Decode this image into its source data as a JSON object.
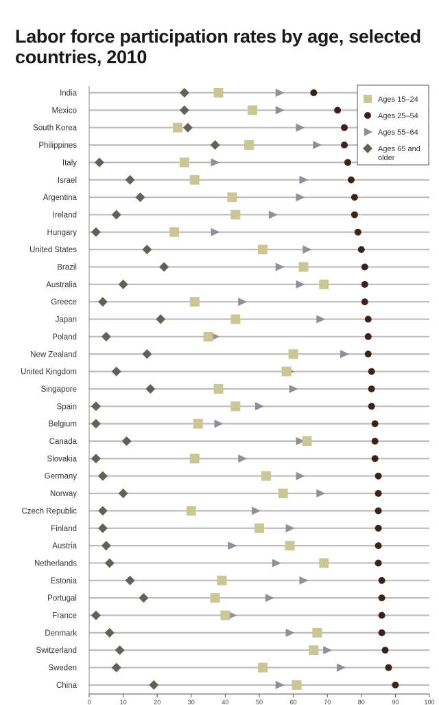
{
  "chart_data": {
    "type": "scatter",
    "title": "Labor force participation rates by age, selected countries, 2010",
    "xlim": [
      0,
      100
    ],
    "xticks": [
      "0",
      "10",
      "20",
      "30",
      "40",
      "50",
      "60",
      "70",
      "80",
      "90",
      "100"
    ],
    "grid": true,
    "legend_position": "top-right",
    "categories": [
      "India",
      "Mexico",
      "South Korea",
      "Philippines",
      "Italy",
      "Israel",
      "Argentina",
      "Ireland",
      "Hungary",
      "United States",
      "Brazil",
      "Australia",
      "Greece",
      "Japan",
      "Poland",
      "New Zealand",
      "United Kingdom",
      "Singapore",
      "Spain",
      "Belgium",
      "Canada",
      "Slovakia",
      "Germany",
      "Norway",
      "Czech Republic",
      "Finland",
      "Austria",
      "Netherlands",
      "Estonia",
      "Portugal",
      "France",
      "Denmark",
      "Switzerland",
      "Sweden",
      "China"
    ],
    "series": [
      {
        "name": "Ages 15–24",
        "marker": "square",
        "color": "#cbc795",
        "values": [
          38,
          48,
          26,
          47,
          28,
          31,
          42,
          43,
          25,
          51,
          63,
          69,
          31,
          43,
          35,
          60,
          58,
          38,
          43,
          32,
          64,
          31,
          52,
          57,
          30,
          50,
          59,
          69,
          39,
          37,
          40,
          67,
          66,
          51,
          61
        ]
      },
      {
        "name": "Ages 25–54",
        "marker": "circle",
        "color": "#3b2318",
        "values": [
          66,
          73,
          75,
          75,
          76,
          77,
          78,
          78,
          79,
          80,
          81,
          81,
          81,
          82,
          82,
          82,
          83,
          83,
          83,
          84,
          84,
          84,
          85,
          85,
          85,
          85,
          85,
          85,
          86,
          86,
          86,
          86,
          87,
          88,
          90
        ]
      },
      {
        "name": "Ages 55–64",
        "marker": "triangle",
        "color": "#8f8f99",
        "values": [
          56,
          56,
          62,
          67,
          37,
          63,
          62,
          54,
          37,
          64,
          56,
          62,
          45,
          68,
          37,
          75,
          59,
          60,
          50,
          38,
          62,
          45,
          62,
          68,
          49,
          59,
          42,
          55,
          63,
          53,
          42,
          59,
          70,
          74,
          56
        ]
      },
      {
        "name": "Ages 65 and older",
        "marker": "diamond",
        "color": "#5e6355",
        "values": [
          28,
          28,
          29,
          37,
          3,
          12,
          15,
          8,
          2,
          17,
          22,
          10,
          4,
          21,
          5,
          17,
          8,
          18,
          2,
          2,
          11,
          2,
          4,
          10,
          4,
          4,
          5,
          6,
          12,
          16,
          2,
          6,
          9,
          8,
          19
        ]
      }
    ]
  }
}
